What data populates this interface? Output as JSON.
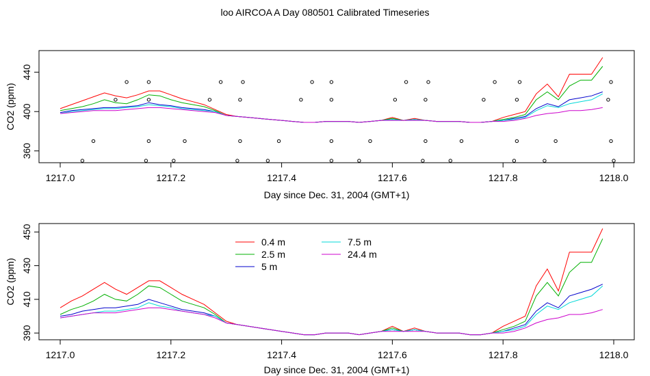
{
  "page": {
    "title": "loo AIRCOA A  Day 080501  Calibrated Timeseries"
  },
  "chart_data": [
    {
      "type": "line",
      "panel": "top",
      "xlabel": "Day since Dec. 31, 2004 (GMT+1)",
      "ylabel": "CO2 (ppm)",
      "xlim": [
        1217.0,
        1218.0
      ],
      "ylim": [
        348,
        462
      ],
      "xticks": [
        "1217.0",
        "1217.2",
        "1217.4",
        "1217.6",
        "1217.8",
        "1218.0"
      ],
      "yticks": [
        "360",
        "400",
        "440"
      ],
      "x": [
        1217.0,
        1217.02,
        1217.04,
        1217.06,
        1217.08,
        1217.1,
        1217.12,
        1217.14,
        1217.16,
        1217.18,
        1217.2,
        1217.22,
        1217.24,
        1217.26,
        1217.28,
        1217.3,
        1217.32,
        1217.34,
        1217.36,
        1217.38,
        1217.4,
        1217.42,
        1217.44,
        1217.46,
        1217.48,
        1217.5,
        1217.52,
        1217.54,
        1217.56,
        1217.58,
        1217.6,
        1217.62,
        1217.64,
        1217.66,
        1217.68,
        1217.7,
        1217.72,
        1217.74,
        1217.76,
        1217.78,
        1217.8,
        1217.82,
        1217.84,
        1217.86,
        1217.88,
        1217.9,
        1217.92,
        1217.94,
        1217.96,
        1217.98
      ],
      "series": [
        {
          "name": "0.4 m",
          "color": "#ff0000",
          "values": [
            403,
            407,
            411,
            415,
            419,
            416,
            414,
            417,
            421,
            421,
            417,
            413,
            410,
            407,
            402,
            397,
            395,
            394,
            393,
            392,
            391,
            390,
            389,
            389,
            390,
            390,
            390,
            389,
            390,
            391,
            394,
            391,
            393,
            391,
            390,
            390,
            390,
            389,
            389,
            390,
            394,
            397,
            400,
            418,
            428,
            415,
            438,
            438,
            438,
            455
          ]
        },
        {
          "name": "2.5 m",
          "color": "#00b000",
          "values": [
            401,
            403,
            405,
            408,
            412,
            409,
            408,
            412,
            417,
            416,
            412,
            409,
            407,
            405,
            401,
            396,
            395,
            394,
            393,
            392,
            391,
            390,
            389,
            389,
            390,
            390,
            390,
            389,
            390,
            391,
            393,
            391,
            392,
            391,
            390,
            390,
            390,
            389,
            389,
            390,
            392,
            394,
            397,
            412,
            420,
            412,
            426,
            432,
            432,
            446
          ]
        },
        {
          "name": "5 m",
          "color": "#0000cc",
          "values": [
            399,
            401,
            402,
            403,
            404,
            404,
            405,
            406,
            409,
            407,
            406,
            404,
            403,
            402,
            400,
            396,
            395,
            394,
            393,
            392,
            391,
            390,
            389,
            389,
            390,
            390,
            390,
            389,
            390,
            391,
            392,
            391,
            392,
            391,
            390,
            390,
            390,
            389,
            389,
            390,
            391,
            393,
            395,
            403,
            408,
            405,
            412,
            414,
            416,
            420
          ]
        },
        {
          "name": "7.5 m",
          "color": "#00d8d8",
          "values": [
            398,
            400,
            401,
            402,
            403,
            403,
            404,
            405,
            407,
            406,
            405,
            403,
            402,
            401,
            400,
            396,
            395,
            394,
            393,
            392,
            391,
            390,
            389,
            389,
            390,
            390,
            390,
            389,
            390,
            391,
            392,
            391,
            392,
            391,
            390,
            390,
            390,
            389,
            389,
            390,
            391,
            392,
            394,
            401,
            406,
            404,
            408,
            410,
            412,
            418
          ]
        },
        {
          "name": "24.4 m",
          "color": "#cc00cc",
          "values": [
            398,
            399,
            400,
            401,
            401,
            401,
            402,
            403,
            404,
            404,
            403,
            402,
            401,
            400,
            399,
            396,
            395,
            394,
            393,
            392,
            391,
            390,
            389,
            389,
            390,
            390,
            390,
            389,
            390,
            391,
            391,
            391,
            391,
            391,
            390,
            390,
            390,
            389,
            389,
            390,
            390,
            391,
            393,
            396,
            398,
            399,
            401,
            401,
            402,
            404
          ]
        }
      ],
      "points": {
        "x": [
          1217.04,
          1217.06,
          1217.1,
          1217.12,
          1217.155,
          1217.16,
          1217.16,
          1217.16,
          1217.205,
          1217.225,
          1217.27,
          1217.29,
          1217.32,
          1217.325,
          1217.325,
          1217.33,
          1217.375,
          1217.395,
          1217.435,
          1217.455,
          1217.49,
          1217.49,
          1217.49,
          1217.49,
          1217.54,
          1217.56,
          1217.605,
          1217.625,
          1217.655,
          1217.66,
          1217.66,
          1217.665,
          1217.705,
          1217.725,
          1217.765,
          1217.785,
          1217.82,
          1217.825,
          1217.825,
          1217.83,
          1217.875,
          1217.895,
          1217.99,
          1217.995,
          1217.995,
          1218.0
        ],
        "y": [
          350,
          370,
          412,
          430,
          350,
          370,
          412,
          430,
          350,
          370,
          412,
          430,
          350,
          370,
          412,
          430,
          350,
          370,
          412,
          430,
          350,
          370,
          412,
          430,
          350,
          370,
          412,
          430,
          350,
          370,
          412,
          430,
          350,
          370,
          412,
          430,
          350,
          370,
          412,
          430,
          350,
          370,
          412,
          430,
          370,
          350
        ]
      }
    },
    {
      "type": "line",
      "panel": "bottom",
      "xlabel": "Day since Dec. 31, 2004 (GMT+1)",
      "ylabel": "CO2 (ppm)",
      "xlim": [
        1217.0,
        1218.0
      ],
      "ylim": [
        386,
        455
      ],
      "xticks": [
        "1217.0",
        "1217.2",
        "1217.4",
        "1217.6",
        "1217.8",
        "1218.0"
      ],
      "yticks": [
        "390",
        "410",
        "430",
        "450"
      ],
      "legend": "top-center",
      "x": [
        1217.0,
        1217.02,
        1217.04,
        1217.06,
        1217.08,
        1217.1,
        1217.12,
        1217.14,
        1217.16,
        1217.18,
        1217.2,
        1217.22,
        1217.24,
        1217.26,
        1217.28,
        1217.3,
        1217.32,
        1217.34,
        1217.36,
        1217.38,
        1217.4,
        1217.42,
        1217.44,
        1217.46,
        1217.48,
        1217.5,
        1217.52,
        1217.54,
        1217.56,
        1217.58,
        1217.6,
        1217.62,
        1217.64,
        1217.66,
        1217.68,
        1217.7,
        1217.72,
        1217.74,
        1217.76,
        1217.78,
        1217.8,
        1217.82,
        1217.84,
        1217.86,
        1217.88,
        1217.9,
        1217.92,
        1217.94,
        1217.96,
        1217.98
      ],
      "series": [
        {
          "name": "0.4 m",
          "color": "#ff0000",
          "values": [
            405,
            409,
            412,
            416,
            420,
            416,
            413,
            417,
            421,
            421,
            417,
            413,
            410,
            407,
            402,
            397,
            395,
            394,
            393,
            392,
            391,
            390,
            389,
            389,
            390,
            390,
            390,
            389,
            390,
            391,
            394,
            391,
            393,
            391,
            390,
            390,
            390,
            389,
            389,
            390,
            394,
            397,
            400,
            418,
            428,
            415,
            438,
            438,
            438,
            452
          ]
        },
        {
          "name": "2.5 m",
          "color": "#00b000",
          "values": [
            401,
            404,
            406,
            409,
            413,
            410,
            409,
            413,
            418,
            417,
            413,
            409,
            407,
            405,
            401,
            396,
            395,
            394,
            393,
            392,
            391,
            390,
            389,
            389,
            390,
            390,
            390,
            389,
            390,
            391,
            393,
            391,
            392,
            391,
            390,
            390,
            390,
            389,
            389,
            390,
            392,
            394,
            397,
            412,
            420,
            412,
            426,
            432,
            432,
            446
          ]
        },
        {
          "name": "5 m",
          "color": "#0000cc",
          "values": [
            400,
            401,
            403,
            404,
            405,
            405,
            406,
            407,
            410,
            408,
            406,
            404,
            403,
            402,
            400,
            396,
            395,
            394,
            393,
            392,
            391,
            390,
            389,
            389,
            390,
            390,
            390,
            389,
            390,
            391,
            392,
            391,
            392,
            391,
            390,
            390,
            390,
            389,
            389,
            390,
            391,
            393,
            395,
            403,
            408,
            405,
            412,
            414,
            416,
            419
          ]
        },
        {
          "name": "7.5 m",
          "color": "#00d8d8",
          "values": [
            399,
            400,
            401,
            402,
            403,
            403,
            404,
            405,
            408,
            406,
            405,
            403,
            402,
            401,
            400,
            396,
            395,
            394,
            393,
            392,
            391,
            390,
            389,
            389,
            390,
            390,
            390,
            389,
            390,
            391,
            392,
            391,
            392,
            391,
            390,
            390,
            390,
            389,
            389,
            390,
            391,
            392,
            394,
            401,
            406,
            404,
            408,
            410,
            412,
            418
          ]
        },
        {
          "name": "24.4 m",
          "color": "#cc00cc",
          "values": [
            399,
            400,
            401,
            402,
            402,
            402,
            403,
            404,
            405,
            405,
            404,
            403,
            402,
            401,
            399,
            396,
            395,
            394,
            393,
            392,
            391,
            390,
            389,
            389,
            390,
            390,
            390,
            389,
            390,
            391,
            391,
            391,
            391,
            391,
            390,
            390,
            390,
            389,
            389,
            390,
            390,
            391,
            393,
            396,
            398,
            399,
            401,
            401,
            402,
            404
          ]
        }
      ]
    }
  ]
}
